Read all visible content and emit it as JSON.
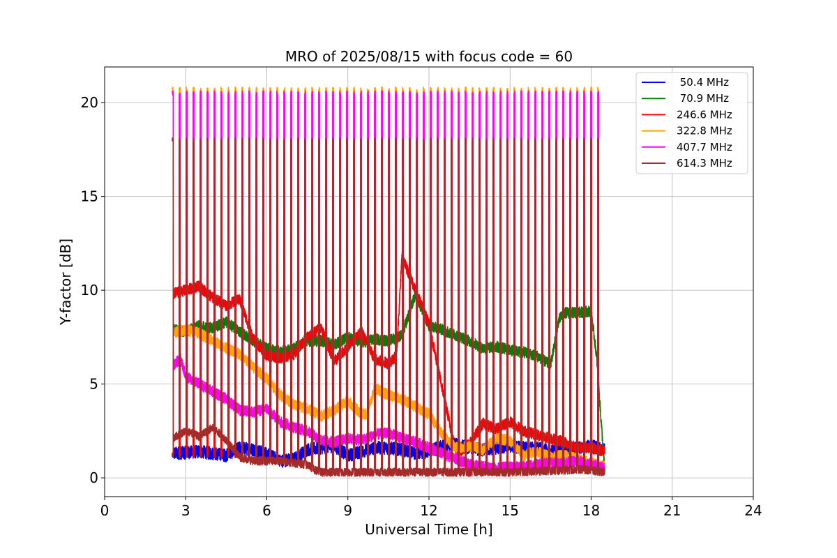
{
  "chart_data": {
    "type": "line",
    "title": "MRO of 2025/08/15 with focus code = 60",
    "xlabel": "Universal Time [h]",
    "ylabel": "Y-factor [dB]",
    "xlim": [
      0,
      24
    ],
    "ylim": [
      -1,
      21.9
    ],
    "xticks": [
      0,
      3,
      6,
      9,
      12,
      15,
      18,
      21,
      24
    ],
    "yticks": [
      0,
      5,
      10,
      15,
      20
    ],
    "grid": true,
    "legend_position": "top-right",
    "data_range_hours": [
      2.5,
      18.5
    ],
    "calibration_pulse_count": 62,
    "series": [
      {
        "name": " 50.4 MHz",
        "color": "#0000ff",
        "pulse_peak": 1.2,
        "noise": 0.35,
        "x": [
          2.5,
          3.5,
          4.5,
          5.0,
          5.5,
          6.0,
          6.5,
          7.0,
          7.5,
          8.0,
          8.5,
          9.0,
          9.5,
          10.0,
          10.5,
          11.0,
          11.5,
          12.0,
          12.5,
          13.0,
          13.5,
          14.0,
          14.5,
          15.0,
          15.5,
          16.0,
          16.5,
          17.0,
          17.5,
          18.0,
          18.5
        ],
        "y": [
          1.3,
          1.4,
          1.2,
          1.6,
          1.5,
          1.3,
          0.9,
          1.0,
          1.5,
          1.6,
          1.7,
          1.2,
          1.4,
          1.6,
          1.6,
          1.5,
          1.3,
          1.4,
          1.7,
          1.8,
          1.6,
          1.5,
          1.6,
          1.7,
          1.6,
          1.6,
          1.4,
          1.5,
          1.6,
          1.7,
          1.5
        ]
      },
      {
        "name": " 70.9 MHz",
        "color": "#008000",
        "pulse_peak": 1.2,
        "noise": 0.3,
        "x": [
          2.5,
          3.0,
          3.5,
          4.0,
          4.5,
          5.0,
          5.5,
          6.0,
          6.5,
          7.0,
          7.5,
          8.0,
          8.5,
          9.0,
          9.5,
          10.0,
          10.5,
          11.0,
          11.5,
          12.0,
          12.5,
          13.0,
          13.5,
          14.0,
          14.5,
          15.0,
          15.5,
          16.0,
          16.5,
          16.8,
          17.0,
          17.5,
          18.0,
          18.2,
          18.5
        ],
        "y": [
          7.9,
          7.8,
          8.1,
          8.0,
          8.3,
          7.8,
          7.3,
          6.9,
          6.7,
          6.9,
          7.3,
          7.3,
          7.1,
          7.5,
          7.2,
          7.4,
          7.3,
          7.6,
          9.8,
          8.1,
          7.9,
          7.6,
          7.3,
          6.9,
          7.0,
          6.8,
          6.7,
          6.5,
          6.0,
          8.4,
          8.8,
          8.8,
          8.9,
          6.5,
          0.4
        ]
      },
      {
        "name": "246.6 MHz",
        "color": "#ff0000",
        "pulse_peak": 1.2,
        "noise": 0.3,
        "x": [
          2.5,
          3.0,
          3.5,
          4.0,
          4.5,
          5.0,
          5.5,
          6.0,
          6.5,
          7.0,
          7.5,
          8.0,
          8.5,
          9.0,
          9.5,
          10.0,
          10.5,
          10.8,
          11.0,
          11.5,
          12.0,
          12.5,
          13.0,
          13.5,
          14.0,
          14.5,
          15.0,
          15.5,
          16.0,
          16.5,
          17.0,
          17.5,
          18.0,
          18.5
        ],
        "y": [
          9.8,
          10.0,
          10.2,
          9.6,
          9.2,
          9.5,
          7.4,
          6.5,
          6.4,
          6.6,
          7.5,
          8.0,
          6.2,
          7.0,
          7.8,
          6.3,
          6.1,
          6.5,
          11.8,
          10.0,
          8.2,
          4.7,
          1.3,
          1.8,
          2.9,
          2.6,
          3.0,
          2.5,
          2.3,
          2.1,
          1.9,
          1.6,
          1.6,
          1.4
        ]
      },
      {
        "name": "322.8 MHz",
        "color": "#ffa500",
        "pulse_peak": 20.7,
        "noise": 0.3,
        "x": [
          2.5,
          3.0,
          3.5,
          4.0,
          4.5,
          5.0,
          5.5,
          6.0,
          6.5,
          7.0,
          7.5,
          8.0,
          8.5,
          9.0,
          9.5,
          9.7,
          10.0,
          10.5,
          11.0,
          11.5,
          12.0,
          12.5,
          13.0,
          13.5,
          14.0,
          14.5,
          15.0,
          15.5,
          16.0,
          16.5,
          17.0,
          17.5,
          18.0,
          18.5
        ],
        "y": [
          7.7,
          7.9,
          7.7,
          7.3,
          6.9,
          6.6,
          5.9,
          5.3,
          4.4,
          3.9,
          3.7,
          3.3,
          3.6,
          4.1,
          3.4,
          3.4,
          4.8,
          4.4,
          4.2,
          3.8,
          3.4,
          2.3,
          1.6,
          1.7,
          1.5,
          2.1,
          2.0,
          1.2,
          1.4,
          1.1,
          1.2,
          1.0,
          0.8,
          0.6
        ]
      },
      {
        "name": "407.7 MHz",
        "color": "#ff00ff",
        "pulse_peak": 20.5,
        "noise": 0.3,
        "x": [
          2.5,
          2.8,
          3.0,
          3.5,
          4.0,
          4.5,
          5.0,
          5.5,
          6.0,
          6.5,
          7.0,
          7.5,
          8.0,
          8.5,
          9.0,
          9.5,
          10.0,
          10.5,
          11.0,
          11.5,
          12.0,
          12.5,
          13.0,
          13.5,
          14.0,
          14.5,
          15.0,
          15.5,
          16.0,
          16.5,
          17.0,
          17.5,
          18.0,
          18.5
        ],
        "y": [
          5.9,
          6.4,
          5.4,
          5.0,
          4.6,
          4.2,
          3.6,
          3.5,
          3.7,
          3.0,
          2.7,
          2.5,
          2.0,
          1.9,
          2.1,
          2.0,
          2.3,
          2.4,
          2.1,
          1.9,
          1.6,
          1.3,
          1.0,
          0.7,
          0.6,
          0.5,
          0.6,
          0.6,
          0.7,
          0.8,
          0.8,
          0.9,
          0.7,
          0.5
        ]
      },
      {
        "name": "614.3 MHz",
        "color": "#a52a2a",
        "pulse_peak": 18.0,
        "noise": 0.22,
        "x": [
          2.5,
          3.0,
          3.5,
          4.0,
          4.5,
          5.0,
          5.5,
          6.0,
          6.5,
          7.0,
          7.5,
          7.8,
          8.0,
          9.0,
          10.0,
          11.0,
          12.0,
          13.0,
          14.0,
          15.0,
          16.0,
          17.0,
          17.5,
          18.0,
          18.5
        ],
        "y": [
          2.1,
          2.5,
          2.2,
          2.7,
          2.0,
          1.1,
          0.9,
          0.9,
          0.9,
          0.8,
          0.7,
          0.4,
          0.3,
          0.3,
          0.3,
          0.3,
          0.3,
          0.3,
          0.3,
          0.3,
          0.35,
          0.4,
          0.45,
          0.4,
          0.3
        ]
      }
    ]
  }
}
